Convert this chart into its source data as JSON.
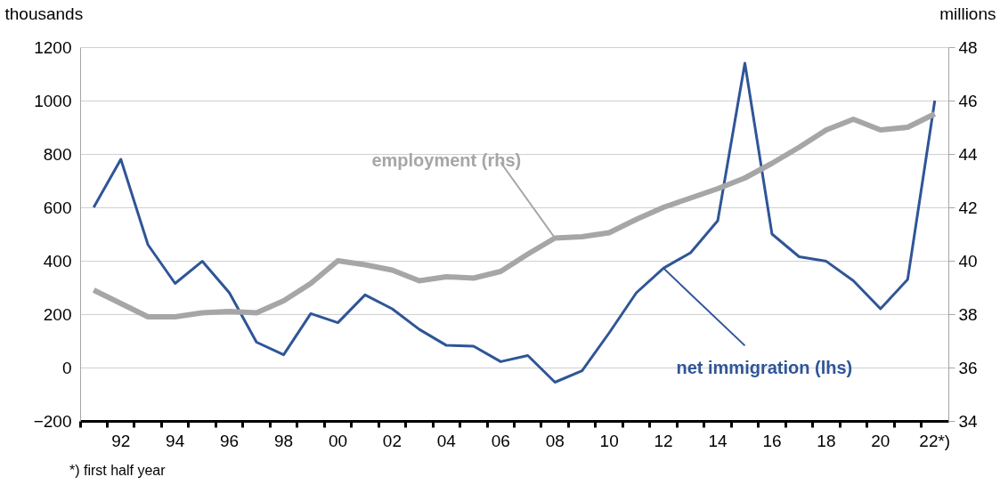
{
  "chart_data": {
    "type": "line",
    "ylabel": "thousands",
    "y2label": "millions",
    "categories": [
      null,
      "92",
      null,
      "94",
      null,
      "96",
      null,
      "98",
      null,
      "00",
      null,
      "02",
      null,
      "04",
      null,
      "06",
      null,
      "08",
      null,
      "10",
      null,
      "12",
      null,
      "14",
      null,
      "16",
      null,
      "18",
      null,
      "20",
      null,
      "22*)"
    ],
    "series": [
      {
        "name": "net immigration (lhs)",
        "color": "#2f5597",
        "values": [
          600,
          780,
          460,
          315,
          398,
          280,
          95,
          48,
          202,
          168,
          272,
          220,
          143,
          83,
          80,
          22,
          45,
          -55,
          -12,
          130,
          280,
          372,
          430,
          550,
          1140,
          500,
          415,
          398,
          325,
          220,
          330,
          1000
        ]
      },
      {
        "name": "employment (rhs)",
        "color": "#a6a6a6",
        "axis": "y2",
        "values": [
          38.9,
          38.4,
          37.9,
          37.9,
          38.05,
          38.1,
          38.05,
          38.5,
          39.15,
          40.0,
          39.85,
          39.65,
          39.25,
          39.4,
          39.35,
          39.6,
          40.25,
          40.85,
          40.9,
          41.05,
          41.55,
          42.0,
          42.35,
          42.7,
          43.1,
          43.65,
          44.25,
          44.9,
          45.3,
          44.9,
          45.0,
          45.5
        ]
      }
    ],
    "ylim": [
      -200,
      1200
    ],
    "yticks": [
      -200,
      0,
      200,
      400,
      600,
      800,
      1000,
      1200
    ],
    "y2lim": [
      34,
      48
    ],
    "y2ticks": [
      34,
      36,
      38,
      40,
      42,
      44,
      46,
      48
    ],
    "grid": "y",
    "annotations": [
      "*) first half year"
    ]
  }
}
